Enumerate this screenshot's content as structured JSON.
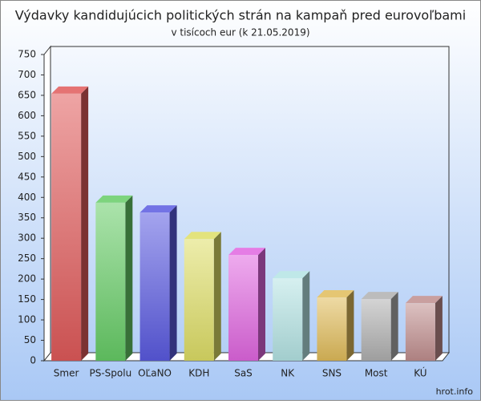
{
  "chart_data": {
    "type": "bar3d",
    "title": "Výdavky kandidujúcich politických strán na kampaň pred eurovoľbami",
    "subtitle": "v tisícoch eur (k 21.05.2019)",
    "source": "hrot.info",
    "categories": [
      "Smer",
      "PS-Spolu",
      "OĽaNO",
      "KDH",
      "SaS",
      "NK",
      "SNS",
      "Most",
      "KÚ"
    ],
    "values": [
      654,
      387,
      363,
      298,
      259,
      202,
      155,
      151,
      141
    ],
    "colors": [
      "#e05a5a",
      "#66cc66",
      "#5a5ae0",
      "#dede66",
      "#e066e0",
      "#b4e4e4",
      "#e0bc5a",
      "#b0b0b0",
      "#c08e8e"
    ],
    "ylim": [
      0,
      750
    ],
    "yticks": [
      0,
      50,
      100,
      150,
      200,
      250,
      300,
      350,
      400,
      450,
      500,
      550,
      600,
      650,
      700,
      750
    ],
    "grid": false
  }
}
